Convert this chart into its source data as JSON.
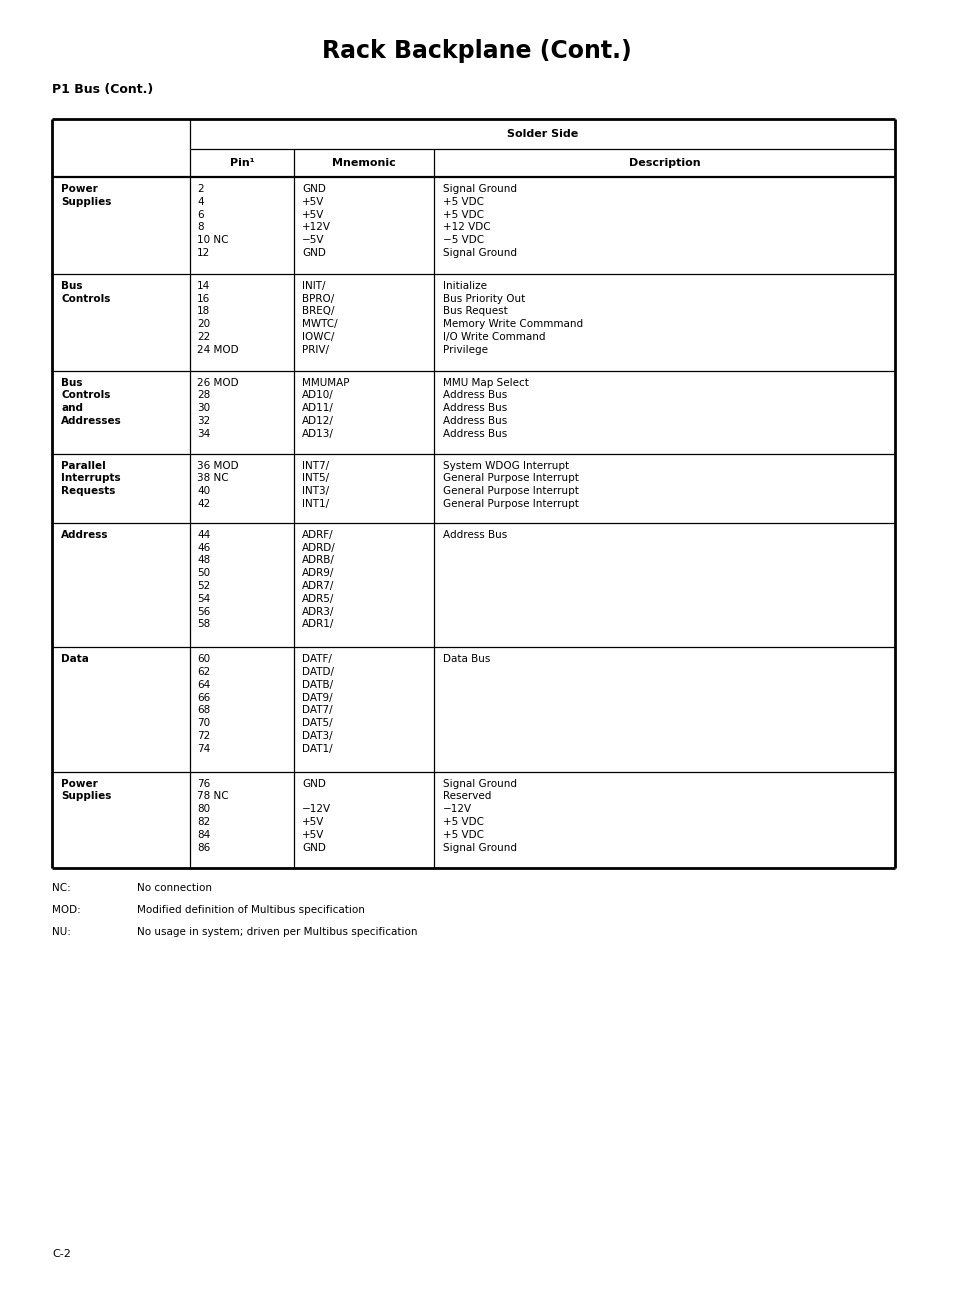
{
  "title": "Rack Backplane (Cont.)",
  "subtitle": "P1 Bus (Cont.)",
  "page_label": "C-2",
  "bg_color": "#ffffff",
  "table_header_row1": "Solder Side",
  "col_headers": [
    "Pin¹",
    "Mnemonic",
    "Description"
  ],
  "rows": [
    {
      "label": "Power\nSupplies",
      "pins": "2\n4\n6\n8\n10 NC\n12",
      "mnemonics": "GND\n+5V\n+5V\n+12V\n−5V\nGND",
      "description": "Signal Ground\n+5 VDC\n+5 VDC\n+12 VDC\n−5 VDC\nSignal Ground"
    },
    {
      "label": "Bus\nControls",
      "pins": "14\n16\n18\n20\n22\n24 MOD",
      "mnemonics": "INIT/\nBPRO/\nBREQ/\nMWTC/\nIOWC/\nPRIV/",
      "description": "Initialize\nBus Priority Out\nBus Request\nMemory Write Commmand\nI/O Write Command\nPrivilege"
    },
    {
      "label": "Bus\nControls\nand\nAddresses",
      "pins": "26 MOD\n28\n30\n32\n34",
      "mnemonics": "MMUMAP\nAD10/\nAD11/\nAD12/\nAD13/",
      "description": "MMU Map Select\nAddress Bus\nAddress Bus\nAddress Bus\nAddress Bus"
    },
    {
      "label": "Parallel\nInterrupts\nRequests",
      "pins": "36 MOD\n38 NC\n40\n42",
      "mnemonics": "INT7/\nINT5/\nINT3/\nINT1/",
      "description": "System WDOG Interrupt\nGeneral Purpose Interrupt\nGeneral Purpose Interrupt\nGeneral Purpose Interrupt"
    },
    {
      "label": "Address",
      "pins": "44\n46\n48\n50\n52\n54\n56\n58",
      "mnemonics": "ADRF/\nADRD/\nADRB/\nADR9/\nADR7/\nADR5/\nADR3/\nADR1/",
      "description": "Address Bus"
    },
    {
      "label": "Data",
      "pins": "60\n62\n64\n66\n68\n70\n72\n74",
      "mnemonics": "DATF/\nDATD/\nDATB/\nDAT9/\nDAT7/\nDAT5/\nDAT3/\nDAT1/",
      "description": "Data Bus"
    },
    {
      "label": "Power\nSupplies",
      "pins": "76\n78 NC\n80\n82\n84\n86",
      "mnemonics": "GND\n\n−12V\n+5V\n+5V\nGND",
      "description": "Signal Ground\nReserved\n−12V\n+5 VDC\n+5 VDC\nSignal Ground"
    }
  ],
  "footnotes": [
    [
      "NC:",
      "No connection"
    ],
    [
      "MOD:",
      "Modified definition of Multibus specification"
    ],
    [
      "NU:",
      "No usage in system; driven per Multibus specification"
    ]
  ],
  "title_fontsize": 17,
  "subtitle_fontsize": 9,
  "header_fontsize": 8,
  "cell_fontsize": 7.5,
  "label_fontsize": 7.5,
  "footnote_fontsize": 7.5,
  "page_fontsize": 8
}
